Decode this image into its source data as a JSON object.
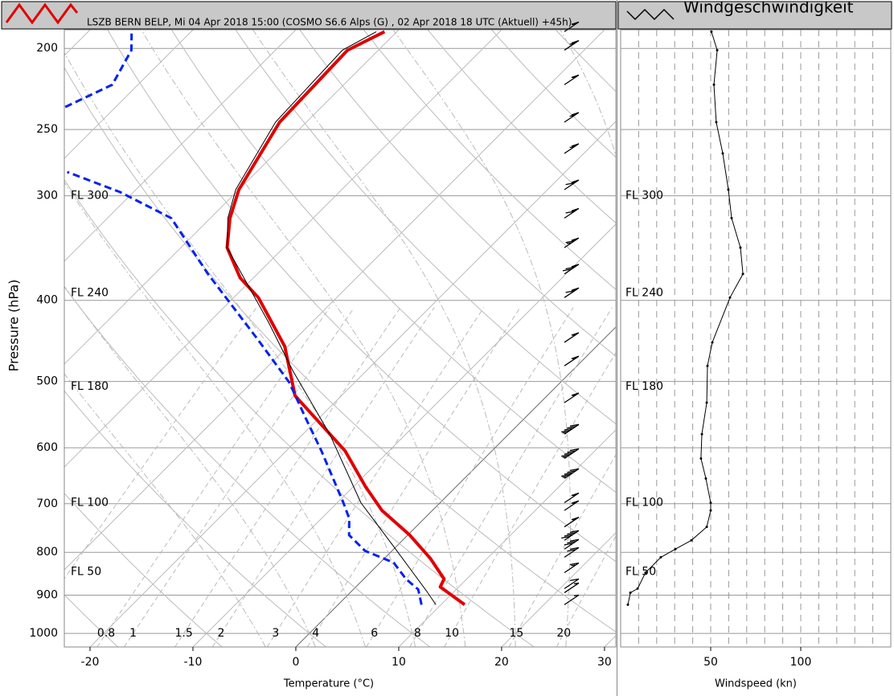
{
  "chart_data": [
    {
      "type": "skewt",
      "title": "LSZB BERN BELP, Mi 04 Apr 2018 15:00 (COSMO  S6.6  Alps (G) , 02 Apr 2018 18 UTC (Aktuell) +45h)",
      "xlabel": "Temperature (°C)",
      "ylabel": "Pressure (hPa)",
      "xlim": [
        -22.5,
        31.1
      ],
      "ylim": [
        1038,
        190
      ],
      "log_y": true,
      "xticks": [
        -20,
        -10,
        0,
        10,
        20,
        30
      ],
      "yticks": [
        200,
        250,
        300,
        400,
        500,
        600,
        700,
        800,
        900,
        1000
      ],
      "isotherms": [
        -100,
        -90,
        -80,
        -70,
        -60,
        -50,
        -40,
        -30,
        -20,
        -10,
        0,
        10,
        20,
        30,
        40
      ],
      "highlight_isotherm": 0,
      "dry_adiabats": [
        -40,
        -30,
        -20,
        -10,
        0,
        10,
        20,
        30,
        40,
        50,
        60,
        70,
        80,
        90,
        100,
        110,
        120,
        130,
        140,
        150
      ],
      "moist_adiabats": [
        -5,
        0,
        5,
        10,
        15,
        20,
        25,
        30,
        35
      ],
      "mixing_ratios": [
        0.4,
        0.8,
        1,
        1.5,
        2,
        3,
        4,
        6,
        8,
        10,
        15,
        20
      ],
      "flight_levels": [
        {
          "label": "FL 300",
          "pressure": 300
        },
        {
          "label": "FL 240",
          "pressure": 392
        },
        {
          "label": "FL 180",
          "pressure": 507
        },
        {
          "label": "FL 100",
          "pressure": 698
        },
        {
          "label": "FL 50",
          "pressure": 844
        }
      ],
      "series": [
        {
          "color": "#e00000",
          "width": 4,
          "dashed": false,
          "pressure": [
            924,
            880,
            861,
            814,
            763,
            713,
            668,
            605,
            520,
            454,
            397,
            376,
            346,
            319,
            295,
            245,
            201,
            191
          ],
          "values": [
            12.3,
            8.2,
            7.8,
            4.5,
            0.2,
            -4.9,
            -8.8,
            -14.3,
            -24.5,
            -30.3,
            -37.6,
            -41.3,
            -45.5,
            -48.1,
            -50,
            -52.6,
            -53,
            -51.2
          ]
        },
        {
          "color": "#0022ee",
          "width": 3,
          "dashed": true,
          "pressure": [
            924,
            886,
            861,
            823,
            797,
            763,
            729,
            698,
            605,
            553,
            501,
            444,
            372,
            319,
            297,
            281,
            260,
            235,
            221,
            201,
            192
          ],
          "values": [
            8.1,
            6.3,
            4.1,
            1.3,
            -2.6,
            -5.7,
            -7.3,
            -9.4,
            -16.6,
            -21.3,
            -26.4,
            -33.8,
            -44.8,
            -53.8,
            -61.3,
            -68.4,
            null,
            -74.9,
            -72.5,
            -74,
            -75.6
          ]
        },
        {
          "color": "#000000",
          "width": 1,
          "dashed": false,
          "pressure": [
            924,
            889,
            788,
            698,
            578,
            485,
            425,
            346,
            319,
            295,
            245,
            201,
            191
          ],
          "values": [
            9.5,
            7.2,
            -0.2,
            -7.7,
            -17.4,
            -27.2,
            -34.2,
            -45.5,
            -48.3,
            -50.3,
            -53,
            -53.5,
            -52
          ]
        }
      ]
    },
    {
      "type": "profile",
      "title": "Windgeschwindigkeit",
      "xlabel": "Windspeed (kn)",
      "xlim": [
        0,
        150
      ],
      "ylim": [
        1038,
        190
      ],
      "log_y": true,
      "xticks": [
        50,
        100
      ],
      "xminor": [
        10,
        20,
        30,
        40,
        50,
        60,
        70,
        80,
        90,
        100,
        110,
        120,
        130,
        140
      ],
      "yticks": [
        200,
        250,
        300,
        400,
        500,
        600,
        700,
        800,
        900,
        1000
      ],
      "flight_levels": [
        {
          "label": "FL 300",
          "pressure": 300
        },
        {
          "label": "FL 240",
          "pressure": 392
        },
        {
          "label": "FL 180",
          "pressure": 507
        },
        {
          "label": "FL 100",
          "pressure": 698
        },
        {
          "label": "FL 50",
          "pressure": 844
        }
      ],
      "series": [
        {
          "color": "#000000",
          "pressure": [
            191,
            201,
            221,
            245,
            267,
            295,
            319,
            346,
            372,
            397,
            449,
            479,
            530,
            578,
            618,
            653,
            698,
            713,
            746,
            774,
            793,
            811,
            846,
            884,
            894,
            924
          ],
          "values": [
            50.4,
            53.6,
            51.8,
            53.1,
            56.7,
            59.8,
            61.6,
            66.5,
            67.9,
            60.7,
            50.9,
            48.2,
            47.8,
            45.1,
            44.6,
            47.3,
            50,
            50,
            47.8,
            39.3,
            30.4,
            22.3,
            13.8,
            9.4,
            5.4,
            4
          ]
        }
      ]
    }
  ]
}
